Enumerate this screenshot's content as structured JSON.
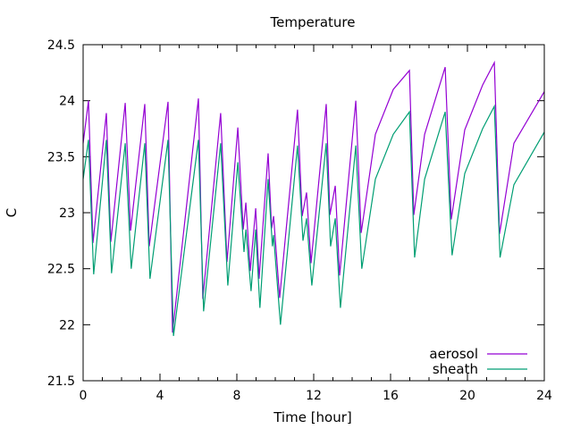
{
  "chart_data": {
    "type": "line",
    "title": "Temperature",
    "xlabel": "Time [hour]",
    "ylabel": "C",
    "xlim": [
      0,
      24
    ],
    "ylim": [
      21.5,
      24.5
    ],
    "xticks": [
      "0",
      "4",
      "8",
      "12",
      "16",
      "20",
      "24"
    ],
    "xtick_values": [
      0,
      4,
      8,
      12,
      16,
      20,
      24
    ],
    "yticks": [
      "21.5",
      "22",
      "22.5",
      "23",
      "23.5",
      "24",
      "24.5"
    ],
    "ytick_values": [
      21.5,
      22,
      22.5,
      23,
      23.5,
      24,
      24.5
    ],
    "x_minor_step": 1,
    "grid": false,
    "legend_position": "bottom-right",
    "series": [
      {
        "name": "aerosol",
        "color": "#9400d3",
        "points": [
          [
            0,
            23.62
          ],
          [
            0.28,
            24.0
          ],
          [
            0.51,
            22.73
          ],
          [
            1.21,
            23.89
          ],
          [
            1.44,
            22.74
          ],
          [
            2.19,
            23.98
          ],
          [
            2.47,
            22.84
          ],
          [
            3.21,
            23.97
          ],
          [
            3.44,
            22.7
          ],
          [
            4.42,
            23.99
          ],
          [
            4.65,
            21.93
          ],
          [
            6.0,
            24.02
          ],
          [
            6.23,
            22.23
          ],
          [
            7.16,
            23.89
          ],
          [
            7.49,
            22.56
          ],
          [
            8.05,
            23.76
          ],
          [
            8.33,
            22.85
          ],
          [
            8.47,
            23.09
          ],
          [
            8.7,
            22.48
          ],
          [
            8.98,
            23.04
          ],
          [
            9.16,
            22.41
          ],
          [
            9.63,
            23.53
          ],
          [
            9.81,
            22.86
          ],
          [
            9.91,
            22.97
          ],
          [
            10.23,
            22.24
          ],
          [
            11.16,
            23.92
          ],
          [
            11.4,
            22.97
          ],
          [
            11.63,
            23.18
          ],
          [
            11.86,
            22.55
          ],
          [
            12.65,
            23.97
          ],
          [
            12.84,
            22.98
          ],
          [
            13.12,
            23.24
          ],
          [
            13.35,
            22.44
          ],
          [
            14.19,
            24.0
          ],
          [
            14.47,
            22.82
          ],
          [
            15.21,
            23.7
          ],
          [
            16.14,
            24.1
          ],
          [
            16.98,
            24.27
          ],
          [
            17.21,
            22.98
          ],
          [
            17.77,
            23.7
          ],
          [
            18.84,
            24.3
          ],
          [
            19.16,
            22.94
          ],
          [
            19.86,
            23.74
          ],
          [
            20.79,
            24.14
          ],
          [
            21.4,
            24.34
          ],
          [
            21.67,
            22.81
          ],
          [
            22.42,
            23.62
          ],
          [
            24.0,
            24.08
          ]
        ]
      },
      {
        "name": "sheath",
        "color": "#009e73",
        "points": [
          [
            0,
            23.3
          ],
          [
            0.28,
            23.65
          ],
          [
            0.55,
            22.45
          ],
          [
            1.21,
            23.65
          ],
          [
            1.48,
            22.46
          ],
          [
            2.19,
            23.62
          ],
          [
            2.5,
            22.5
          ],
          [
            3.21,
            23.62
          ],
          [
            3.48,
            22.41
          ],
          [
            4.42,
            23.65
          ],
          [
            4.7,
            21.9
          ],
          [
            6.0,
            23.65
          ],
          [
            6.27,
            22.12
          ],
          [
            7.16,
            23.62
          ],
          [
            7.53,
            22.35
          ],
          [
            8.05,
            23.45
          ],
          [
            8.37,
            22.65
          ],
          [
            8.47,
            22.85
          ],
          [
            8.74,
            22.3
          ],
          [
            8.98,
            22.85
          ],
          [
            9.2,
            22.15
          ],
          [
            9.63,
            23.3
          ],
          [
            9.85,
            22.7
          ],
          [
            9.91,
            22.8
          ],
          [
            10.27,
            22.0
          ],
          [
            11.16,
            23.6
          ],
          [
            11.44,
            22.75
          ],
          [
            11.63,
            22.95
          ],
          [
            11.9,
            22.35
          ],
          [
            12.65,
            23.62
          ],
          [
            12.88,
            22.7
          ],
          [
            13.12,
            22.95
          ],
          [
            13.39,
            22.15
          ],
          [
            14.19,
            23.6
          ],
          [
            14.5,
            22.5
          ],
          [
            15.21,
            23.3
          ],
          [
            16.14,
            23.7
          ],
          [
            16.98,
            23.9
          ],
          [
            17.25,
            22.6
          ],
          [
            17.77,
            23.3
          ],
          [
            18.84,
            23.9
          ],
          [
            19.2,
            22.62
          ],
          [
            19.86,
            23.35
          ],
          [
            20.79,
            23.75
          ],
          [
            21.4,
            23.95
          ],
          [
            21.7,
            22.6
          ],
          [
            22.42,
            23.25
          ],
          [
            24.0,
            23.72
          ]
        ]
      }
    ]
  }
}
